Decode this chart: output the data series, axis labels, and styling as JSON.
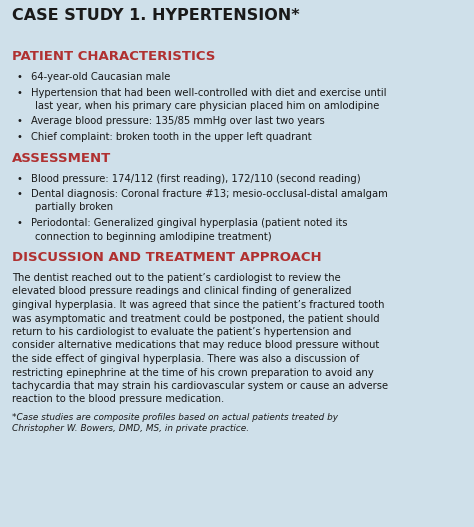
{
  "bg_color": "#cfe0ea",
  "title": "CASE STUDY 1. HYPERTENSION*",
  "title_color": "#1a1a1a",
  "title_fontsize": 11.5,
  "section_color": "#b03030",
  "body_color": "#1a1a1a",
  "section1_heading": "PATIENT CHARACTERISTICS",
  "section2_heading": "ASSESSMENT",
  "section3_heading": "DISCUSSION AND TREATMENT APPROACH",
  "heading_fontsize": 9.5,
  "body_fontsize": 7.2,
  "footnote_fontsize": 6.4,
  "bullets_s1": [
    "64-year-old Caucasian male",
    "Hypertension that had been well-controlled with diet and exercise until\n   last year, when his primary care physician placed him on amlodipine",
    "Average blood pressure: 135/85 mmHg over last two years",
    "Chief complaint: broken tooth in the upper left quadrant"
  ],
  "bullets_s2": [
    "Blood pressure: 174/112 (first reading), 172/110 (second reading)",
    "Dental diagnosis: Coronal fracture #13; mesio-occlusal-distal amalgam\n   partially broken",
    "Periodontal: Generalized gingival hyperplasia (patient noted its\n   connection to beginning amlodipine treatment)"
  ],
  "discussion_lines": [
    "The dentist reached out to the patient’s cardiologist to review the",
    "elevated blood pressure readings and clinical finding of generalized",
    "gingival hyperplasia. It was agreed that since the patient’s fractured tooth",
    "was asymptomatic and treatment could be postponed, the patient should",
    "return to his cardiologist to evaluate the patient’s hypertension and",
    "consider alternative medications that may reduce blood pressure without",
    "the side effect of gingival hyperplasia. There was also a discussion of",
    "restricting epinephrine at the time of his crown preparation to avoid any",
    "tachycardia that may strain his cardiovascular system or cause an adverse",
    "reaction to the blood pressure medication."
  ],
  "footnote_lines": [
    "*Case studies are composite profiles based on actual patients treated by",
    "Christopher W. Bowers, DMD, MS, in private practice."
  ]
}
